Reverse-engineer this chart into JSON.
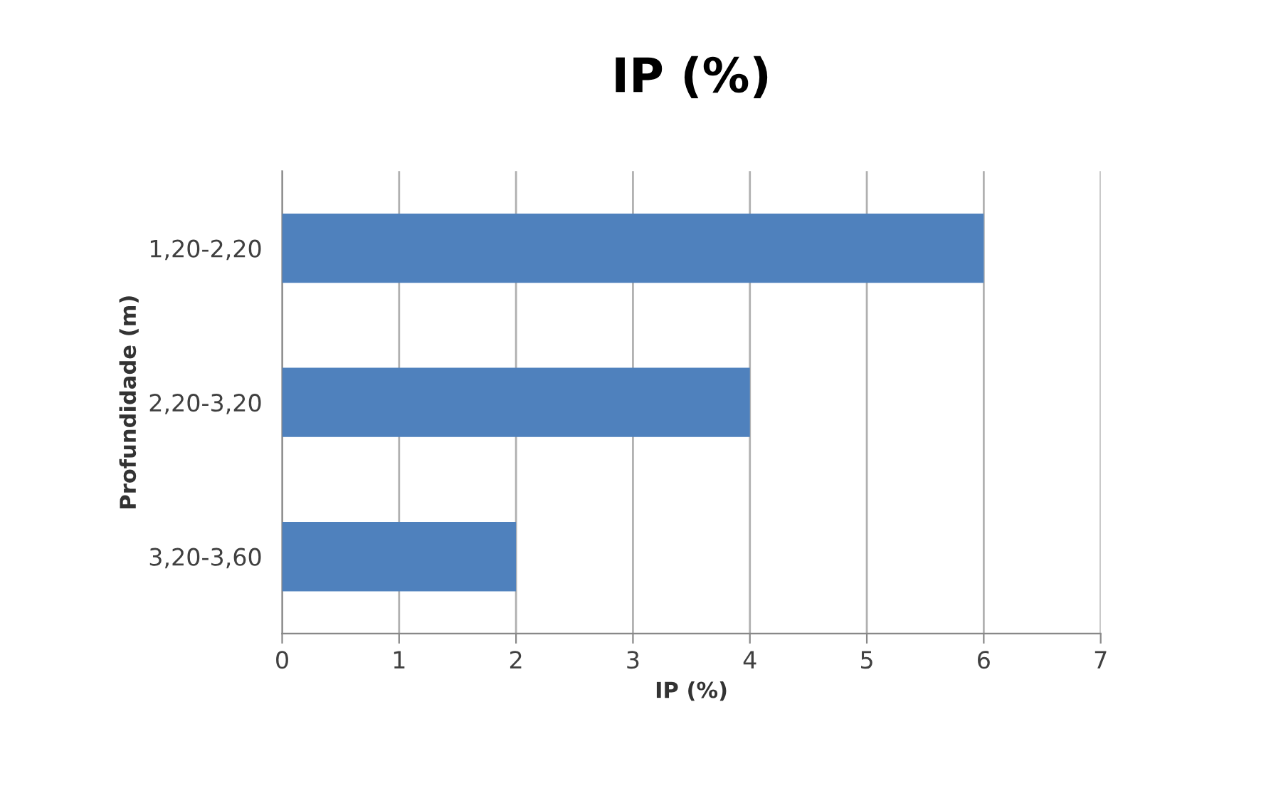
{
  "chart_data": {
    "type": "bar",
    "orientation": "horizontal",
    "title": "IP (%)",
    "xlabel": "IP (%)",
    "ylabel": "Profundidade (m)",
    "categories": [
      "1,20-2,20",
      "2,20-3,20",
      "3,20-3,60"
    ],
    "series": [
      {
        "color": "#4f81bd",
        "values": [
          6,
          4,
          2
        ]
      }
    ],
    "xlim": [
      0,
      7
    ],
    "xticks": [
      0,
      1,
      2,
      3,
      4,
      5,
      6,
      7
    ],
    "grid": "x",
    "legend": false
  }
}
